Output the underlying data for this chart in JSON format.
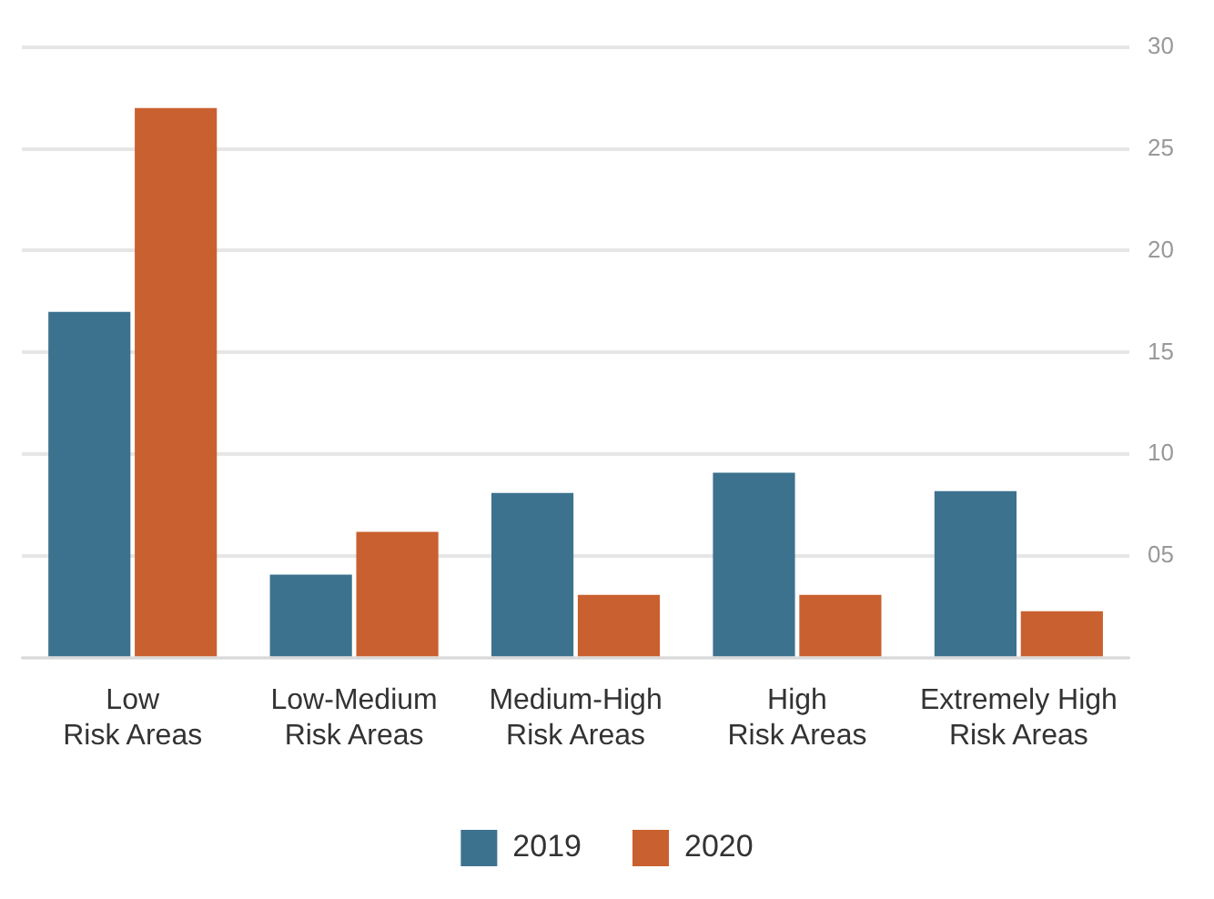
{
  "chart_data": {
    "type": "bar",
    "categories": [
      "Low\nRisk Areas",
      "Low-Medium\nRisk Areas",
      "Medium-High\nRisk Areas",
      "High\nRisk Areas",
      "Extremely High\nRisk Areas"
    ],
    "series": [
      {
        "name": "2019",
        "color": "#3d728f",
        "values": [
          17,
          4.1,
          8.1,
          9.1,
          8.2
        ]
      },
      {
        "name": "2020",
        "color": "#c9602f",
        "values": [
          27,
          6.2,
          3.1,
          3.1,
          2.3
        ]
      }
    ],
    "ylim": [
      0,
      30
    ],
    "yticks": [
      {
        "value": 0,
        "label": null
      },
      {
        "value": 5,
        "label": "05"
      },
      10,
      15,
      20,
      25,
      30
    ],
    "grid": "y",
    "legend": "bottom"
  }
}
